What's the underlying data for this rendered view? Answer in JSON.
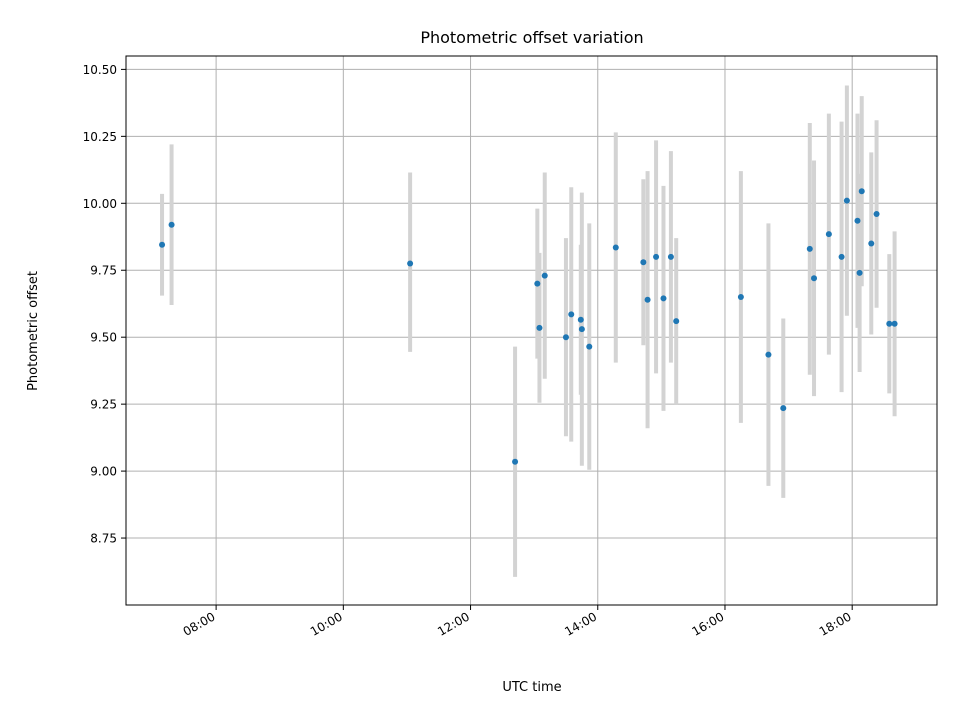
{
  "chart_data": {
    "type": "scatter",
    "title": "Photometric offset variation",
    "xlabel": "UTC time",
    "ylabel": "Photometric offset",
    "x_unit": "time of day (UTC)",
    "xlim": [
      "06:35",
      "19:20"
    ],
    "ylim": [
      8.5,
      10.55
    ],
    "x_ticks": [
      "08:00",
      "10:00",
      "12:00",
      "14:00",
      "16:00",
      "18:00"
    ],
    "y_ticks": [
      "8.75",
      "9.00",
      "9.25",
      "9.50",
      "9.75",
      "10.00",
      "10.25",
      "10.50"
    ],
    "grid": true,
    "legend": false,
    "colors": {
      "marker": "#1f77b4",
      "errorbar": "#d3d3d3",
      "grid": "#b0b0b0"
    },
    "series": [
      {
        "points": [
          {
            "x": "07:09",
            "y": 9.845,
            "err_low": 0.19,
            "err_high": 0.19
          },
          {
            "x": "07:18",
            "y": 9.92,
            "err_low": 0.3,
            "err_high": 0.3
          },
          {
            "x": "11:03",
            "y": 9.775,
            "err_low": 0.33,
            "err_high": 0.34
          },
          {
            "x": "12:42",
            "y": 9.035,
            "err_low": 0.43,
            "err_high": 0.43
          },
          {
            "x": "13:03",
            "y": 9.7,
            "err_low": 0.28,
            "err_high": 0.28
          },
          {
            "x": "13:05",
            "y": 9.535,
            "err_low": 0.28,
            "err_high": 0.28
          },
          {
            "x": "13:10",
            "y": 9.73,
            "err_low": 0.385,
            "err_high": 0.385
          },
          {
            "x": "13:30",
            "y": 9.5,
            "err_low": 0.37,
            "err_high": 0.37
          },
          {
            "x": "13:35",
            "y": 9.585,
            "err_low": 0.475,
            "err_high": 0.475
          },
          {
            "x": "13:44",
            "y": 9.565,
            "err_low": 0.28,
            "err_high": 0.28
          },
          {
            "x": "13:45",
            "y": 9.53,
            "err_low": 0.51,
            "err_high": 0.51
          },
          {
            "x": "13:52",
            "y": 9.465,
            "err_low": 0.46,
            "err_high": 0.46
          },
          {
            "x": "14:17",
            "y": 9.835,
            "err_low": 0.43,
            "err_high": 0.43
          },
          {
            "x": "14:43",
            "y": 9.78,
            "err_low": 0.31,
            "err_high": 0.31
          },
          {
            "x": "14:47",
            "y": 9.64,
            "err_low": 0.48,
            "err_high": 0.48
          },
          {
            "x": "14:55",
            "y": 9.8,
            "err_low": 0.435,
            "err_high": 0.435
          },
          {
            "x": "15:02",
            "y": 9.645,
            "err_low": 0.42,
            "err_high": 0.42
          },
          {
            "x": "15:09",
            "y": 9.8,
            "err_low": 0.395,
            "err_high": 0.395
          },
          {
            "x": "15:14",
            "y": 9.56,
            "err_low": 0.31,
            "err_high": 0.31
          },
          {
            "x": "16:15",
            "y": 9.65,
            "err_low": 0.47,
            "err_high": 0.47
          },
          {
            "x": "16:41",
            "y": 9.435,
            "err_low": 0.49,
            "err_high": 0.49
          },
          {
            "x": "16:55",
            "y": 9.235,
            "err_low": 0.335,
            "err_high": 0.335
          },
          {
            "x": "17:20",
            "y": 9.83,
            "err_low": 0.47,
            "err_high": 0.47
          },
          {
            "x": "17:24",
            "y": 9.72,
            "err_low": 0.44,
            "err_high": 0.44
          },
          {
            "x": "17:38",
            "y": 9.885,
            "err_low": 0.45,
            "err_high": 0.45
          },
          {
            "x": "17:50",
            "y": 9.8,
            "err_low": 0.505,
            "err_high": 0.505
          },
          {
            "x": "17:55",
            "y": 10.01,
            "err_low": 0.43,
            "err_high": 0.43
          },
          {
            "x": "18:05",
            "y": 9.935,
            "err_low": 0.4,
            "err_high": 0.4
          },
          {
            "x": "18:07",
            "y": 9.74,
            "err_low": 0.37,
            "err_high": 0.37
          },
          {
            "x": "18:09",
            "y": 10.045,
            "err_low": 0.355,
            "err_high": 0.355
          },
          {
            "x": "18:18",
            "y": 9.85,
            "err_low": 0.34,
            "err_high": 0.34
          },
          {
            "x": "18:23",
            "y": 9.96,
            "err_low": 0.35,
            "err_high": 0.35
          },
          {
            "x": "18:35",
            "y": 9.55,
            "err_low": 0.26,
            "err_high": 0.26
          },
          {
            "x": "18:40",
            "y": 9.55,
            "err_low": 0.345,
            "err_high": 0.345
          }
        ]
      }
    ]
  }
}
